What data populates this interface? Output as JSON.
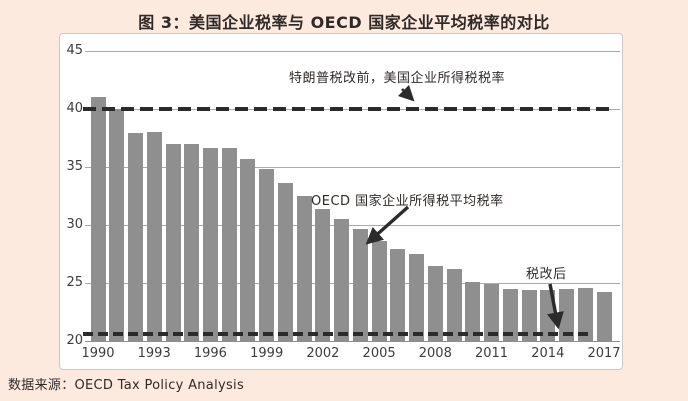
{
  "title": "图 3：美国企业税率与 OECD 国家企业平均税率的对比",
  "source": "数据来源：OECD Tax Policy Analysis",
  "colors": {
    "background": "#fceade",
    "panel": "#ffffff",
    "panel_border": "#c9c9c9",
    "bar": "#8f8f8f",
    "gridline": "#aaaaaa",
    "dashed_line": "#2b2b2b",
    "text": "#2f2a28"
  },
  "chart_data": {
    "type": "bar",
    "title": "图 3：美国企业税率与 OECD 国家企业平均税率的对比",
    "categories": [
      1990,
      1991,
      1992,
      1993,
      1994,
      1995,
      1996,
      1997,
      1998,
      1999,
      2000,
      2001,
      2002,
      2003,
      2004,
      2005,
      2006,
      2007,
      2008,
      2009,
      2010,
      2011,
      2012,
      2013,
      2014,
      2015,
      2016,
      2017
    ],
    "series": [
      {
        "name": "OECD 国家企业所得税平均税率",
        "values": [
          41.0,
          40.0,
          37.9,
          38.0,
          37.0,
          37.0,
          36.6,
          36.6,
          35.7,
          34.8,
          33.6,
          32.5,
          31.4,
          30.5,
          29.7,
          28.6,
          27.9,
          27.5,
          26.5,
          26.2,
          25.1,
          24.9,
          24.5,
          24.4,
          24.4,
          24.5,
          24.6,
          24.2
        ]
      }
    ],
    "ylim": [
      20,
      45
    ],
    "yticks": [
      20,
      25,
      30,
      35,
      40,
      45
    ],
    "xtick_labels": [
      "1990",
      "1993",
      "1996",
      "1999",
      "2002",
      "2005",
      "2008",
      "2011",
      "2014",
      "2017"
    ],
    "grid": "horizontal",
    "legend": "none",
    "reference_lines": [
      {
        "label": "特朗普税改前，美国企业所得税税率",
        "value": 40,
        "style": "dashed"
      },
      {
        "label": "税改后",
        "value": 20.6,
        "style": "dashed"
      }
    ]
  }
}
